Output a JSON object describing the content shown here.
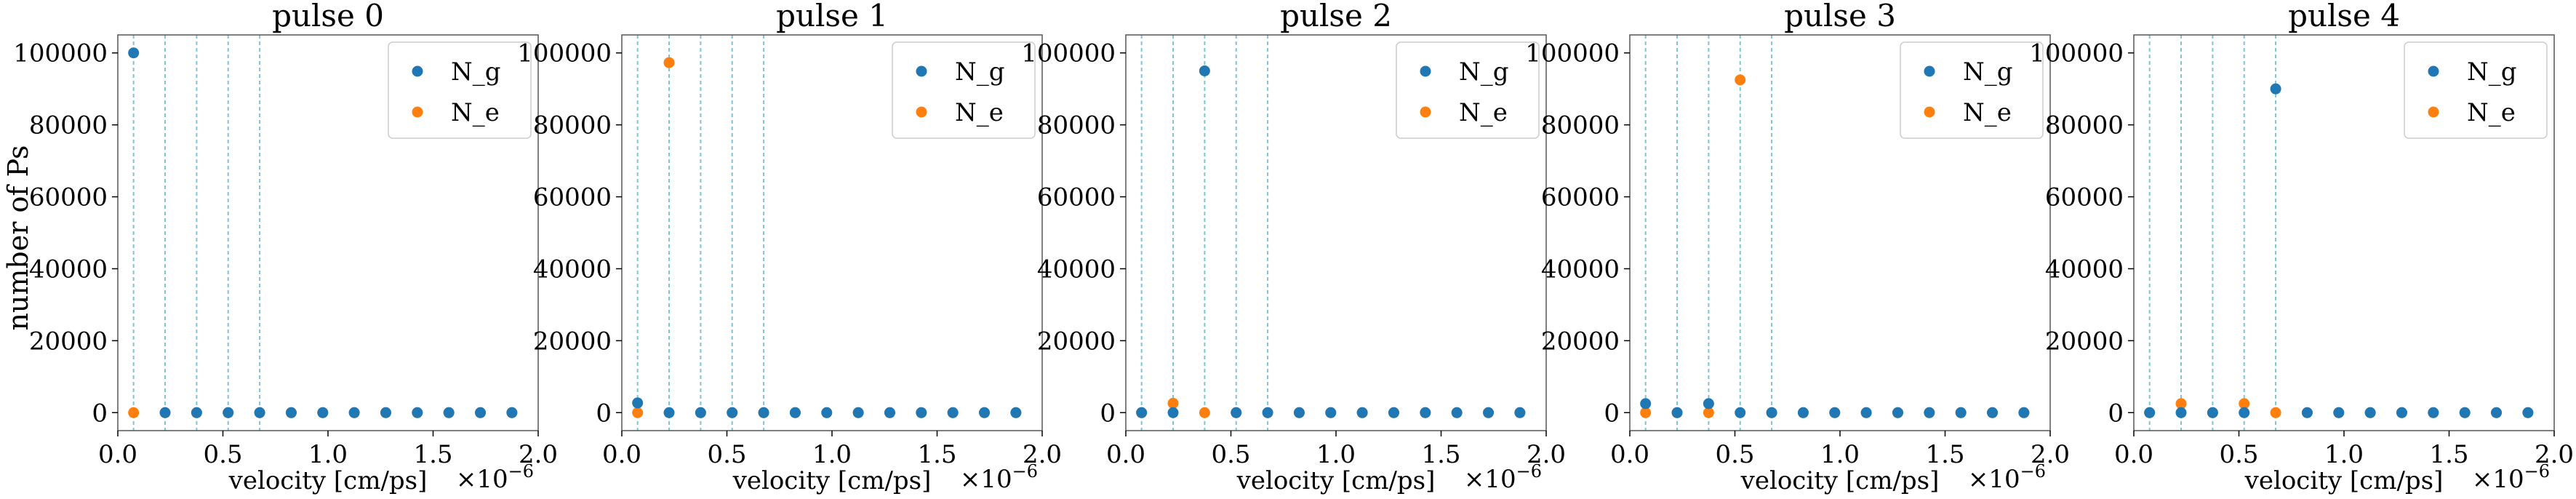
{
  "figure": {
    "ylabel": "number of Ps",
    "xlabel": "velocity [cm/ps]",
    "x_scale_label": "×10",
    "x_scale_exp": "−6"
  },
  "chart_data": [
    {
      "type": "scatter",
      "title": "pulse 0",
      "xlabel": "velocity [cm/ps]",
      "ylabel": "number of Ps",
      "xlim": [
        0.0,
        2.0
      ],
      "ylim": [
        -5000,
        105000
      ],
      "x_ticks": [
        "0.0",
        "0.5",
        "1.0",
        "1.5",
        "2.0"
      ],
      "y_ticks": [
        "0",
        "20000",
        "40000",
        "60000",
        "80000",
        "100000"
      ],
      "vlines": [
        0.075,
        0.225,
        0.375,
        0.525,
        0.675
      ],
      "x": [
        0.075,
        0.225,
        0.375,
        0.525,
        0.675,
        0.825,
        0.975,
        1.125,
        1.275,
        1.425,
        1.575,
        1.725,
        1.875
      ],
      "series": [
        {
          "name": "N_g",
          "color": "#1f77b4",
          "values": [
            100000,
            0,
            0,
            0,
            0,
            0,
            0,
            0,
            0,
            0,
            0,
            0,
            0
          ]
        },
        {
          "name": "N_e",
          "color": "#ff7f0e",
          "values": [
            0,
            0,
            0,
            0,
            0,
            0,
            0,
            0,
            0,
            0,
            0,
            0,
            0
          ]
        }
      ],
      "legend": "top-right"
    },
    {
      "type": "scatter",
      "title": "pulse 1",
      "xlabel": "velocity [cm/ps]",
      "xlim": [
        0.0,
        2.0
      ],
      "ylim": [
        -5000,
        105000
      ],
      "x_ticks": [
        "0.0",
        "0.5",
        "1.0",
        "1.5",
        "2.0"
      ],
      "y_ticks": [
        "0",
        "20000",
        "40000",
        "60000",
        "80000",
        "100000"
      ],
      "vlines": [
        0.075,
        0.225,
        0.375,
        0.525,
        0.675
      ],
      "x": [
        0.075,
        0.225,
        0.375,
        0.525,
        0.675,
        0.825,
        0.975,
        1.125,
        1.275,
        1.425,
        1.575,
        1.725,
        1.875
      ],
      "series": [
        {
          "name": "N_g",
          "color": "#1f77b4",
          "values": [
            2700,
            0,
            0,
            0,
            0,
            0,
            0,
            0,
            0,
            0,
            0,
            0,
            0
          ]
        },
        {
          "name": "N_e",
          "color": "#ff7f0e",
          "values": [
            0,
            97300,
            0,
            0,
            0,
            0,
            0,
            0,
            0,
            0,
            0,
            0,
            0
          ]
        }
      ],
      "legend": "top-right"
    },
    {
      "type": "scatter",
      "title": "pulse 2",
      "xlabel": "velocity [cm/ps]",
      "xlim": [
        0.0,
        2.0
      ],
      "ylim": [
        -5000,
        105000
      ],
      "x_ticks": [
        "0.0",
        "0.5",
        "1.0",
        "1.5",
        "2.0"
      ],
      "y_ticks": [
        "0",
        "20000",
        "40000",
        "60000",
        "80000",
        "100000"
      ],
      "vlines": [
        0.075,
        0.225,
        0.375,
        0.525,
        0.675
      ],
      "x": [
        0.075,
        0.225,
        0.375,
        0.525,
        0.675,
        0.825,
        0.975,
        1.125,
        1.275,
        1.425,
        1.575,
        1.725,
        1.875
      ],
      "series": [
        {
          "name": "N_g",
          "color": "#1f77b4",
          "values": [
            0,
            0,
            95000,
            0,
            0,
            0,
            0,
            0,
            0,
            0,
            0,
            0,
            0
          ]
        },
        {
          "name": "N_e",
          "color": "#ff7f0e",
          "values": [
            0,
            2600,
            0,
            0,
            0,
            0,
            0,
            0,
            0,
            0,
            0,
            0,
            0
          ]
        }
      ],
      "legend": "top-right"
    },
    {
      "type": "scatter",
      "title": "pulse 3",
      "xlabel": "velocity [cm/ps]",
      "xlim": [
        0.0,
        2.0
      ],
      "ylim": [
        -5000,
        105000
      ],
      "x_ticks": [
        "0.0",
        "0.5",
        "1.0",
        "1.5",
        "2.0"
      ],
      "y_ticks": [
        "0",
        "20000",
        "40000",
        "60000",
        "80000",
        "100000"
      ],
      "vlines": [
        0.075,
        0.225,
        0.375,
        0.525,
        0.675
      ],
      "x": [
        0.075,
        0.225,
        0.375,
        0.525,
        0.675,
        0.825,
        0.975,
        1.125,
        1.275,
        1.425,
        1.575,
        1.725,
        1.875
      ],
      "series": [
        {
          "name": "N_g",
          "color": "#1f77b4",
          "values": [
            2500,
            0,
            2500,
            0,
            0,
            0,
            0,
            0,
            0,
            0,
            0,
            0,
            0
          ]
        },
        {
          "name": "N_e",
          "color": "#ff7f0e",
          "values": [
            0,
            0,
            0,
            92500,
            0,
            0,
            0,
            0,
            0,
            0,
            0,
            0,
            0
          ]
        }
      ],
      "legend": "top-right"
    },
    {
      "type": "scatter",
      "title": "pulse 4",
      "xlabel": "velocity [cm/ps]",
      "xlim": [
        0.0,
        2.0
      ],
      "ylim": [
        -5000,
        105000
      ],
      "x_ticks": [
        "0.0",
        "0.5",
        "1.0",
        "1.5",
        "2.0"
      ],
      "y_ticks": [
        "0",
        "20000",
        "40000",
        "60000",
        "80000",
        "100000"
      ],
      "vlines": [
        0.075,
        0.225,
        0.375,
        0.525,
        0.675
      ],
      "x": [
        0.075,
        0.225,
        0.375,
        0.525,
        0.675,
        0.825,
        0.975,
        1.125,
        1.275,
        1.425,
        1.575,
        1.725,
        1.875
      ],
      "series": [
        {
          "name": "N_g",
          "color": "#1f77b4",
          "values": [
            0,
            0,
            0,
            0,
            90000,
            0,
            0,
            0,
            0,
            0,
            0,
            0,
            0
          ]
        },
        {
          "name": "N_e",
          "color": "#ff7f0e",
          "values": [
            0,
            2500,
            0,
            2500,
            0,
            0,
            0,
            0,
            0,
            0,
            0,
            0,
            0
          ]
        }
      ],
      "legend": "top-right"
    }
  ]
}
